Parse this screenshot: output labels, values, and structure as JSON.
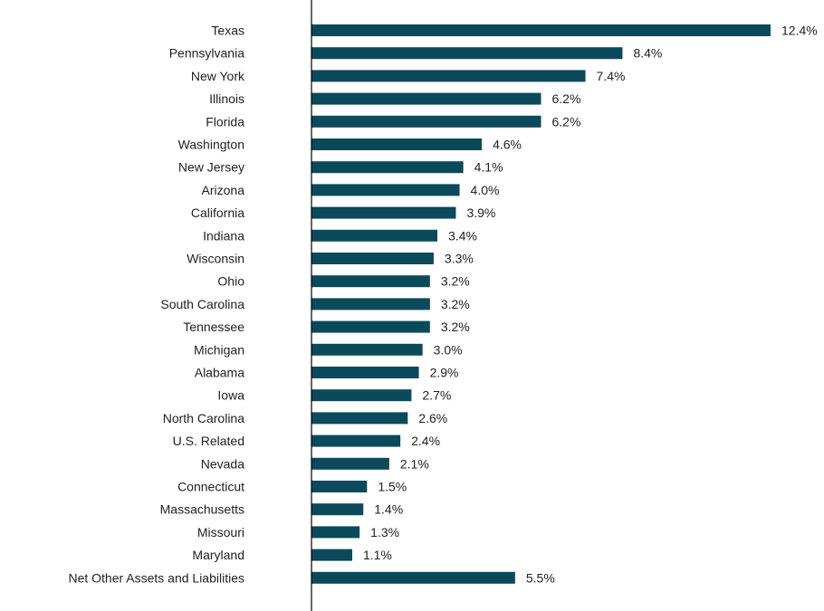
{
  "chart_data": {
    "type": "bar",
    "orientation": "horizontal",
    "title": "",
    "xlabel": "",
    "ylabel": "",
    "grid": false,
    "legend": "none",
    "bar_color": "#0b4a5a",
    "value_suffix": "%",
    "value_decimals": 1,
    "xlim": [
      0,
      12.4
    ],
    "categories": [
      "Texas",
      "Pennsylvania",
      "New York",
      "Illinois",
      "Florida",
      "Washington",
      "New Jersey",
      "Arizona",
      "California",
      "Indiana",
      "Wisconsin",
      "Ohio",
      "South Carolina",
      "Tennessee",
      "Michigan",
      "Alabama",
      "Iowa",
      "North Carolina",
      "U.S. Related",
      "Nevada",
      "Connecticut",
      "Massachusetts",
      "Missouri",
      "Maryland",
      "Net Other Assets and Liabilities"
    ],
    "values": [
      12.4,
      8.4,
      7.4,
      6.2,
      6.2,
      4.6,
      4.1,
      4.0,
      3.9,
      3.4,
      3.3,
      3.2,
      3.2,
      3.2,
      3.0,
      2.9,
      2.7,
      2.6,
      2.4,
      2.1,
      1.5,
      1.4,
      1.3,
      1.1,
      5.5
    ]
  }
}
